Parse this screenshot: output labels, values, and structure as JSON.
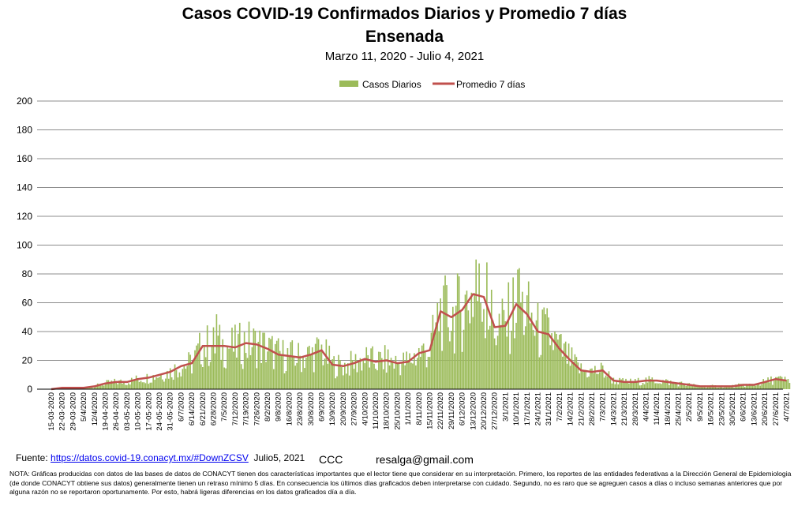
{
  "chart_data": {
    "type": "bar",
    "title": "Casos COVID-19 Confirmados Diarios y Promedio 7 días",
    "subtitle": "Ensenada",
    "date_range": "Marzo 11, 2020 - Julio 4, 2021",
    "ylim": [
      0,
      200
    ],
    "y_ticks": [
      0,
      20,
      40,
      60,
      80,
      100,
      120,
      140,
      160,
      180,
      200
    ],
    "grid": true,
    "legend_position": "top",
    "x_tick_labels": [
      "15-03-2020",
      "22-03-2020",
      "29-03-2020",
      "5/4/2020",
      "12/4/2020",
      "19-04-2020",
      "26-04-2020",
      "03-05-2020",
      "10-05-2020",
      "17-05-2020",
      "24-05-2020",
      "31-05-2020",
      "6/7/2020",
      "6/14/2020",
      "6/21/2020",
      "6/28/2020",
      "7/5/2020",
      "7/12/2020",
      "7/19/2020",
      "7/26/2020",
      "8/2/2020",
      "9/8/2020",
      "16/8/2020",
      "23/8/2020",
      "30/8/2020",
      "6/9/2020",
      "13/9/2020",
      "20/9/2020",
      "27/9/2020",
      "4/10/2020",
      "11/10/2020",
      "18/10/2020",
      "25/10/2020",
      "1/11/2020",
      "8/11/2020",
      "15/11/2020",
      "22/11/2020",
      "29/11/2020",
      "6/12/2020",
      "13/12/2020",
      "20/12/2020",
      "27/12/2020",
      "3/1/2021",
      "10/1/2021",
      "17/1/2021",
      "24/1/2021",
      "31/1/2021",
      "7/2/2021",
      "14/2/2021",
      "21/2/2021",
      "28/2/2021",
      "7/3/2021",
      "14/3/2021",
      "21/3/2021",
      "28/3/2021",
      "4/4/2021",
      "11/4/2021",
      "18/4/2021",
      "25/4/2021",
      "2/5/2021",
      "9/5/2021",
      "16/5/2021",
      "23/5/2021",
      "30/5/2021",
      "6/6/2021",
      "13/6/2021",
      "20/6/2021",
      "27/6/2021",
      "4/7/2021"
    ],
    "series": [
      {
        "name": "Casos Diarios",
        "type": "bar",
        "color": "#9bbb59",
        "weekly_reference": [
          0,
          1,
          1,
          1,
          2,
          4,
          5,
          5,
          7,
          8,
          10,
          12,
          16,
          18,
          30,
          30,
          30,
          29,
          32,
          31,
          28,
          24,
          23,
          22,
          24,
          27,
          17,
          16,
          18,
          21,
          19,
          20,
          18,
          19,
          25,
          27,
          54,
          50,
          55,
          66,
          64,
          43,
          44,
          59,
          52,
          40,
          38,
          28,
          20,
          13,
          12,
          13,
          6,
          5,
          5,
          6,
          6,
          5,
          4,
          3,
          2,
          2,
          2,
          2,
          3,
          3,
          5,
          7,
          6
        ],
        "daily_peaks": {
          "6/28/2020": 52,
          "22/11/2020": 72,
          "13/12/2020": 90,
          "20/12/2020": 88,
          "10/1/2021": 84
        }
      },
      {
        "name": "Promedio 7 días",
        "type": "line",
        "color": "#c0504d",
        "weekly_values": [
          0,
          1,
          1,
          1,
          2,
          4,
          5,
          5,
          7,
          8,
          10,
          12,
          16,
          18,
          30,
          30,
          30,
          29,
          32,
          31,
          28,
          24,
          23,
          22,
          24,
          27,
          17,
          16,
          18,
          21,
          19,
          20,
          18,
          19,
          25,
          27,
          54,
          50,
          55,
          66,
          64,
          43,
          44,
          59,
          52,
          40,
          38,
          28,
          20,
          13,
          12,
          13,
          6,
          5,
          5,
          6,
          6,
          5,
          4,
          3,
          2,
          2,
          2,
          2,
          3,
          3,
          5,
          7,
          6
        ]
      }
    ]
  },
  "footer": {
    "source_label": "Fuente:",
    "source_link": "https://datos.covid-19.conacyt.mx/#DownZCSV",
    "source_date": "Julio5, 2021",
    "author": "CCC",
    "email": "resalga@gmail.com",
    "note": "NOTA: Gráficas producidas con datos de las bases de datos de CONACYT tienen dos características importantes que el lector tiene que considerar en su interpretación. Primero, los reportes de las entidades federativas a la Dirección General de Epidemiologia (de donde CONACYT obtiene sus datos) generalmente tienen un retraso mínimo 5 días. En consecuencia los últimos días graficados deben interpretarse con cuidado. Segundo, no es raro que se agreguen casos a días o incluso semanas anteriores que por alguna razón no se reportaron oportunamente. Por esto, habrá ligeras diferencias en los datos graficados día a día."
  }
}
